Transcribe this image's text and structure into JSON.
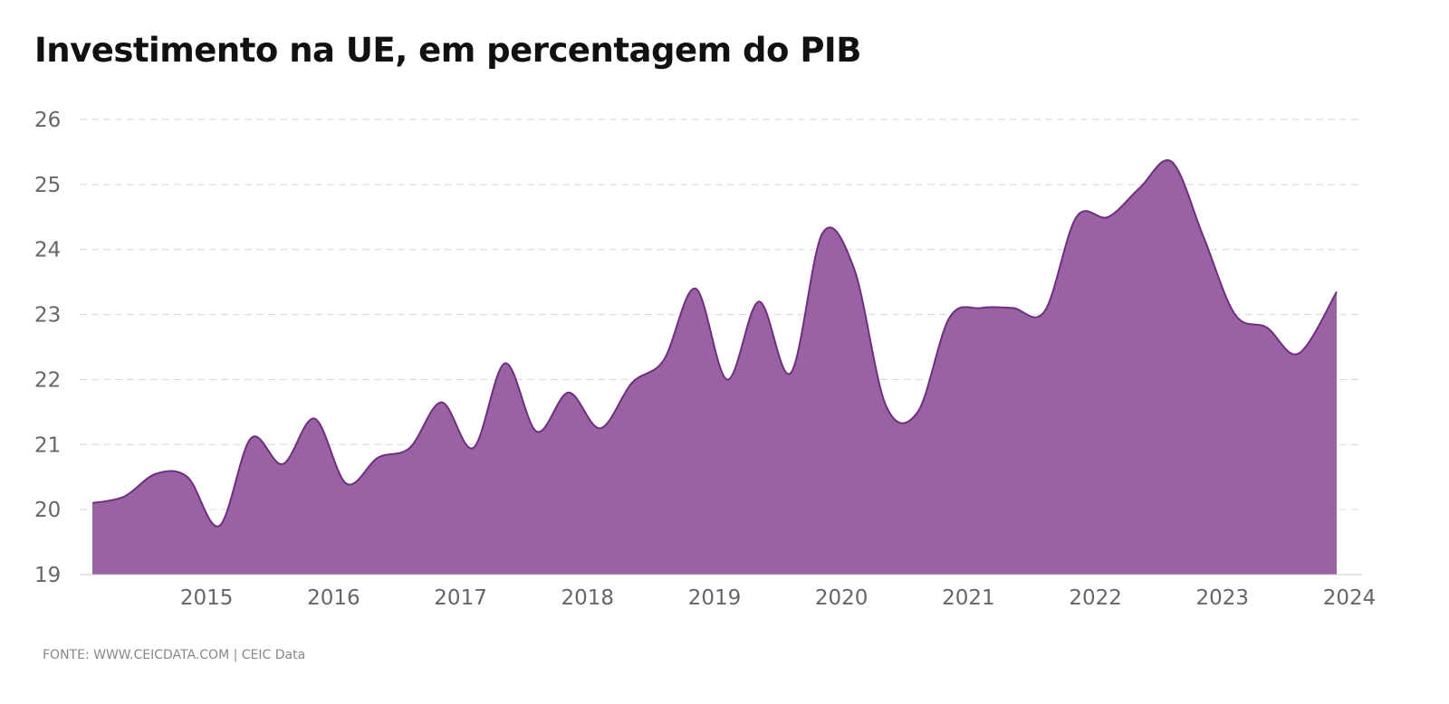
{
  "chart_data": {
    "type": "area",
    "title": "Investimento na UE, em percentagem do PIB",
    "xlabel": "",
    "ylabel": "",
    "x_ticks": [
      "2015",
      "2016",
      "2017",
      "2018",
      "2019",
      "2020",
      "2021",
      "2022",
      "2023",
      "2024"
    ],
    "y_ticks": [
      19,
      20,
      21,
      22,
      23,
      24,
      25,
      26
    ],
    "xlim": [
      2014.1,
      2024.0
    ],
    "ylim": [
      19,
      26
    ],
    "grid": true,
    "legend": "none",
    "series": [
      {
        "color": "#9862a3",
        "line_color": "#6f2f7f",
        "x": [
          2014.1,
          2014.35,
          2014.6,
          2014.85,
          2015.1,
          2015.35,
          2015.6,
          2015.85,
          2016.1,
          2016.35,
          2016.6,
          2016.85,
          2017.1,
          2017.35,
          2017.6,
          2017.85,
          2018.1,
          2018.35,
          2018.6,
          2018.85,
          2019.1,
          2019.35,
          2019.6,
          2019.85,
          2020.1,
          2020.35,
          2020.6,
          2020.85,
          2021.1,
          2021.35,
          2021.6,
          2021.85,
          2022.1,
          2022.35,
          2022.6,
          2022.85,
          2023.1,
          2023.35,
          2023.6,
          2023.9
        ],
        "y": [
          20.1,
          20.2,
          20.55,
          20.5,
          19.75,
          21.1,
          20.7,
          21.4,
          20.4,
          20.8,
          20.95,
          21.65,
          20.95,
          22.25,
          21.2,
          21.8,
          21.25,
          21.95,
          22.3,
          23.4,
          22.0,
          23.2,
          22.1,
          24.25,
          23.7,
          21.6,
          21.5,
          22.95,
          23.1,
          23.1,
          23.05,
          24.5,
          24.5,
          24.95,
          25.35,
          24.2,
          23.0,
          22.8,
          22.4,
          23.35
        ]
      }
    ],
    "source": "FONTE: WWW.CEICDATA.COM | CEIC Data"
  }
}
